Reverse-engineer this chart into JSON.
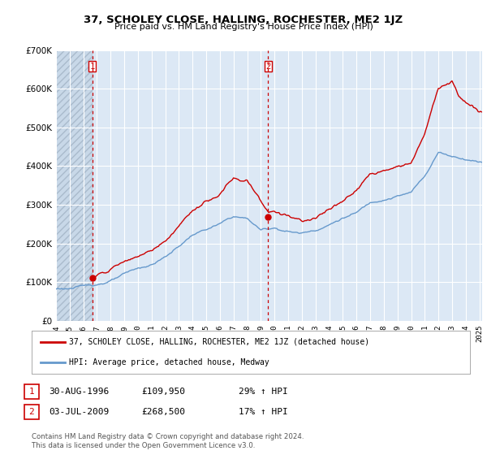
{
  "title": "37, SCHOLEY CLOSE, HALLING, ROCHESTER, ME2 1JZ",
  "subtitle": "Price paid vs. HM Land Registry's House Price Index (HPI)",
  "background_color": "#ffffff",
  "plot_bg_color": "#dce8f5",
  "hatch_color": "#c8d8e8",
  "grid_color": "#ffffff",
  "hpi_color": "#6699cc",
  "price_color": "#cc0000",
  "ylim": [
    0,
    700000
  ],
  "yticks": [
    0,
    100000,
    200000,
    300000,
    400000,
    500000,
    600000,
    700000
  ],
  "ytick_labels": [
    "£0",
    "£100K",
    "£200K",
    "£300K",
    "£400K",
    "£500K",
    "£600K",
    "£700K"
  ],
  "xlim_start": 1994.0,
  "xlim_end": 2025.2,
  "xticks": [
    1994,
    1995,
    1996,
    1997,
    1998,
    1999,
    2000,
    2001,
    2002,
    2003,
    2004,
    2005,
    2006,
    2007,
    2008,
    2009,
    2010,
    2011,
    2012,
    2013,
    2014,
    2015,
    2016,
    2017,
    2018,
    2019,
    2020,
    2021,
    2022,
    2023,
    2024,
    2025
  ],
  "vline1_x": 1996.66,
  "vline2_x": 2009.54,
  "marker1_date": 1996.66,
  "marker1_price": 109950,
  "marker2_date": 2009.54,
  "marker2_price": 268500,
  "legend_line1": "37, SCHOLEY CLOSE, HALLING, ROCHESTER, ME2 1JZ (detached house)",
  "legend_line2": "HPI: Average price, detached house, Medway",
  "ann1_date": "30-AUG-1996",
  "ann1_price": "£109,950",
  "ann1_pct": "29% ↑ HPI",
  "ann2_date": "03-JUL-2009",
  "ann2_price": "£268,500",
  "ann2_pct": "17% ↑ HPI",
  "footer": "Contains HM Land Registry data © Crown copyright and database right 2024.\nThis data is licensed under the Open Government Licence v3.0."
}
